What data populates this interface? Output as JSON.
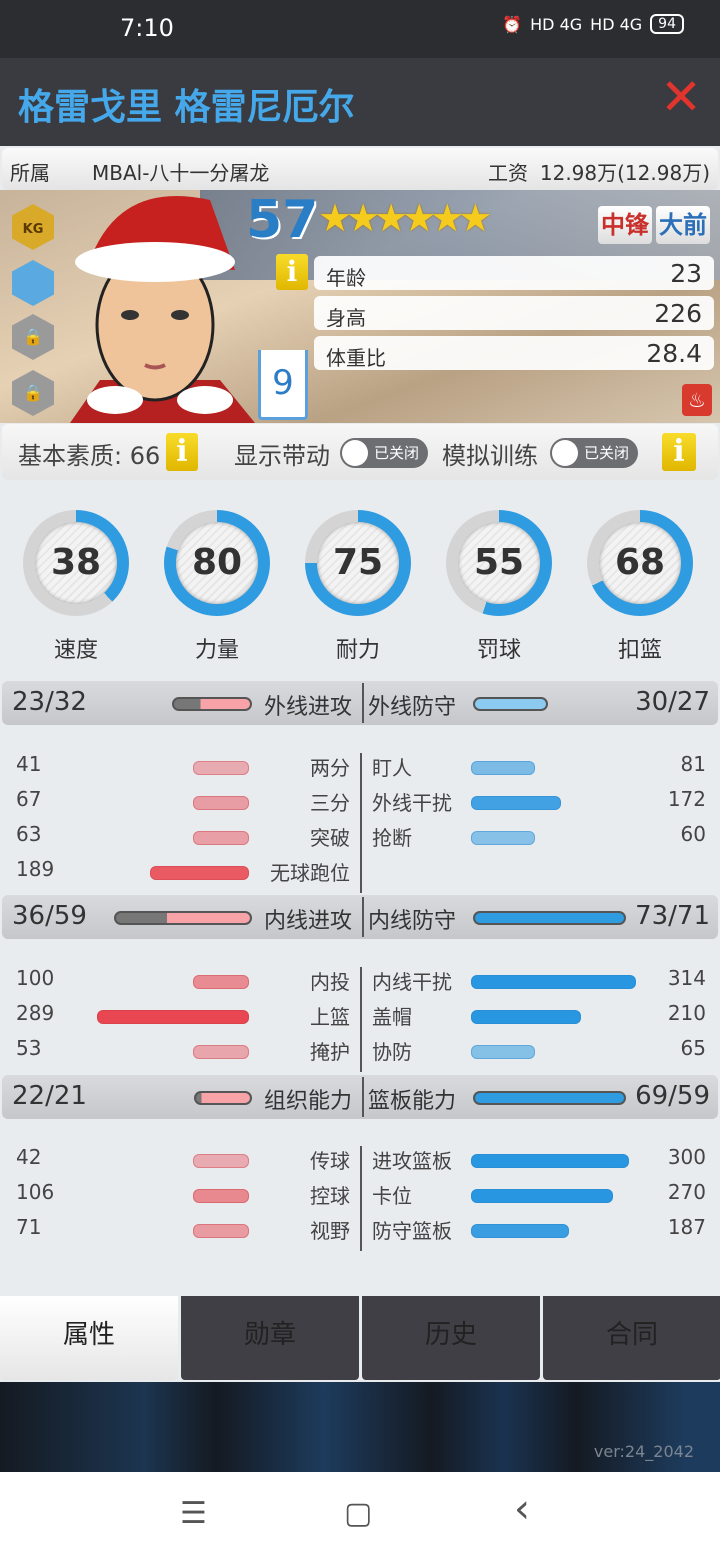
{
  "status": {
    "time": "7:10",
    "network": "HD 4G",
    "network2": "HD 4G",
    "battery": "94"
  },
  "header": {
    "title": "格雷戈里 格雷尼厄尔",
    "close_icon": "close-x"
  },
  "info": {
    "team_label": "所属",
    "team": "MBAl-八十一分屠龙",
    "salary_label": "工资",
    "salary": "12.98万(12.98万)"
  },
  "player": {
    "overall": "57",
    "stars": "★★★★★★",
    "star_rating": 5.5,
    "positions": [
      "中锋",
      "大前"
    ],
    "jersey": "9",
    "badges": [
      "KG",
      "player-silhouette",
      "lock",
      "lock"
    ],
    "props": [
      {
        "label": "年龄",
        "value": "23"
      },
      {
        "label": "身高",
        "value": "226"
      },
      {
        "label": "体重比",
        "value": "28.4"
      }
    ]
  },
  "toggles": {
    "base_label": "基本素质: 66",
    "show_label": "显示带动",
    "show_state": "已关闭",
    "train_label": "模拟训练",
    "train_state": "已关闭",
    "info": "i"
  },
  "rings": [
    {
      "value": "38",
      "label": "速度"
    },
    {
      "value": "80",
      "label": "力量"
    },
    {
      "value": "75",
      "label": "耐力"
    },
    {
      "value": "55",
      "label": "罚球"
    },
    {
      "value": "68",
      "label": "扣篮"
    }
  ],
  "sections": [
    {
      "left": {
        "title": "外线进攻",
        "score": "23/32",
        "rows": [
          {
            "label": "两分",
            "value": "41"
          },
          {
            "label": "三分",
            "value": "67"
          },
          {
            "label": "突破",
            "value": "63"
          },
          {
            "label": "无球跑位",
            "value": "189"
          }
        ]
      },
      "right": {
        "title": "外线防守",
        "score": "30/27",
        "rows": [
          {
            "label": "盯人",
            "value": "81"
          },
          {
            "label": "外线干扰",
            "value": "172"
          },
          {
            "label": "抢断",
            "value": "60"
          }
        ]
      }
    },
    {
      "left": {
        "title": "内线进攻",
        "score": "36/59",
        "rows": [
          {
            "label": "内投",
            "value": "100"
          },
          {
            "label": "上篮",
            "value": "289"
          },
          {
            "label": "掩护",
            "value": "53"
          }
        ]
      },
      "right": {
        "title": "内线防守",
        "score": "73/71",
        "rows": [
          {
            "label": "内线干扰",
            "value": "314"
          },
          {
            "label": "盖帽",
            "value": "210"
          },
          {
            "label": "协防",
            "value": "65"
          }
        ]
      }
    },
    {
      "left": {
        "title": "组织能力",
        "score": "22/21",
        "rows": [
          {
            "label": "传球",
            "value": "42"
          },
          {
            "label": "控球",
            "value": "106"
          },
          {
            "label": "视野",
            "value": "71"
          }
        ]
      },
      "right": {
        "title": "篮板能力",
        "score": "69/59",
        "rows": [
          {
            "label": "进攻篮板",
            "value": "300"
          },
          {
            "label": "卡位",
            "value": "270"
          },
          {
            "label": "防守篮板",
            "value": "187"
          }
        ]
      }
    }
  ],
  "tabs": [
    {
      "label": "属性",
      "active": true
    },
    {
      "label": "勋章"
    },
    {
      "label": "历史"
    },
    {
      "label": "合同"
    }
  ],
  "version": "ver:24_2042",
  "nav": {
    "menu": "☰",
    "home": "▢",
    "back": "‹"
  },
  "colors": {
    "title": "#45a8ea",
    "attack": "#e8545c",
    "defense": "#2f9be0",
    "close": "#e0342c"
  }
}
